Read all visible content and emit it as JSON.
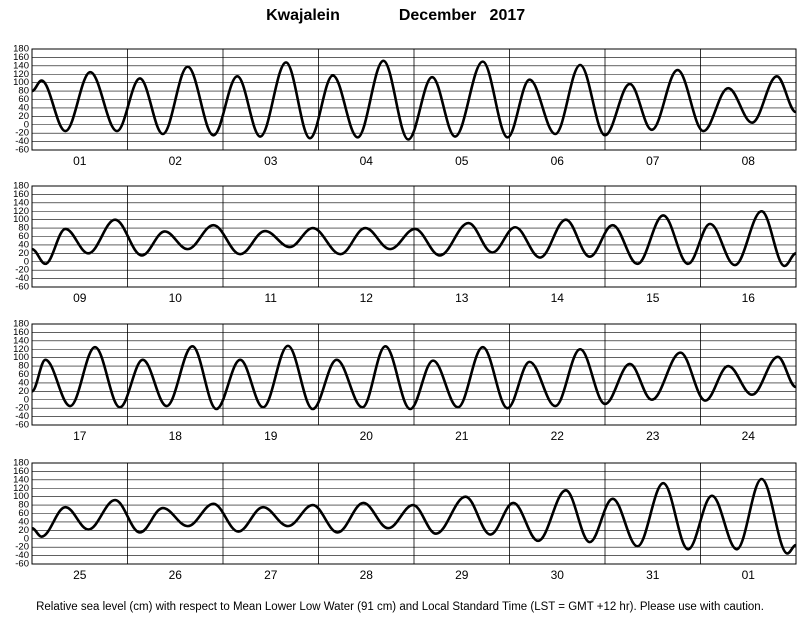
{
  "header": {
    "location": "Kwajalein",
    "date": "December   2017"
  },
  "footnote": "Relative sea level (cm) with respect to Mean Lower Low Water (91 cm) and Local Standard Time (LST = GMT +12 hr). Please use with caution.",
  "chart_data": [
    {
      "type": "line",
      "categories": [
        "01",
        "02",
        "03",
        "04",
        "05",
        "06",
        "07",
        "08"
      ],
      "xlim": [
        0,
        8
      ],
      "ylim": [
        -60,
        180
      ],
      "yticks": [
        -60,
        -40,
        -20,
        0,
        20,
        40,
        60,
        80,
        100,
        120,
        140,
        160,
        180
      ],
      "grid": true,
      "x": [
        0,
        0.1,
        0.35,
        0.61,
        0.89,
        1.13,
        1.37,
        1.63,
        1.9,
        2.15,
        2.39,
        2.66,
        2.91,
        3.15,
        3.41,
        3.68,
        3.94,
        4.19,
        4.43,
        4.72,
        4.98,
        5.21,
        5.48,
        5.74,
        6.0,
        6.26,
        6.49,
        6.76,
        7.03,
        7.29,
        7.54,
        7.8,
        8.0
      ],
      "series": [
        {
          "color": "#000000",
          "values": [
            80,
            105,
            -15,
            125,
            -15,
            110,
            -22,
            138,
            -25,
            115,
            -28,
            148,
            -32,
            117,
            -30,
            152,
            -35,
            113,
            -28,
            150,
            -30,
            107,
            -22,
            142,
            -25,
            97,
            -12,
            130,
            -15,
            87,
            5,
            115,
            30
          ]
        }
      ]
    },
    {
      "type": "line",
      "categories": [
        "09",
        "10",
        "11",
        "12",
        "13",
        "14",
        "15",
        "16"
      ],
      "xlim": [
        0,
        8
      ],
      "ylim": [
        -60,
        180
      ],
      "yticks": [
        -60,
        -40,
        -20,
        0,
        20,
        40,
        60,
        80,
        100,
        120,
        140,
        160,
        180
      ],
      "grid": true,
      "x": [
        0,
        0.14,
        0.35,
        0.59,
        0.87,
        1.15,
        1.39,
        1.63,
        1.9,
        2.18,
        2.44,
        2.7,
        2.94,
        3.23,
        3.49,
        3.75,
        4.01,
        4.27,
        4.57,
        4.82,
        5.06,
        5.32,
        5.59,
        5.84,
        6.08,
        6.34,
        6.61,
        6.87,
        7.1,
        7.36,
        7.64,
        7.88,
        8.0
      ],
      "series": [
        {
          "color": "#000000",
          "values": [
            30,
            -5,
            78,
            20,
            100,
            15,
            72,
            30,
            87,
            18,
            73,
            35,
            80,
            18,
            80,
            30,
            78,
            15,
            92,
            22,
            82,
            10,
            100,
            12,
            87,
            -5,
            110,
            -5,
            90,
            -8,
            120,
            -10,
            20
          ]
        }
      ]
    },
    {
      "type": "line",
      "categories": [
        "17",
        "18",
        "19",
        "20",
        "21",
        "22",
        "23",
        "24"
      ],
      "xlim": [
        0,
        8
      ],
      "ylim": [
        -60,
        180
      ],
      "yticks": [
        -60,
        -40,
        -20,
        0,
        20,
        40,
        60,
        80,
        100,
        120,
        140,
        160,
        180
      ],
      "grid": true,
      "x": [
        0,
        0.14,
        0.4,
        0.66,
        0.92,
        1.16,
        1.41,
        1.68,
        1.93,
        2.18,
        2.42,
        2.68,
        2.94,
        3.19,
        3.46,
        3.7,
        3.96,
        4.2,
        4.46,
        4.72,
        4.98,
        5.21,
        5.48,
        5.74,
        6.0,
        6.26,
        6.49,
        6.79,
        7.05,
        7.29,
        7.54,
        7.81,
        8.0
      ],
      "series": [
        {
          "color": "#000000",
          "values": [
            20,
            95,
            -15,
            125,
            -18,
            95,
            -15,
            127,
            -22,
            95,
            -18,
            128,
            -22,
            95,
            -18,
            127,
            -22,
            93,
            -18,
            125,
            -20,
            90,
            -15,
            120,
            -10,
            85,
            0,
            112,
            -2,
            80,
            12,
            102,
            30
          ]
        }
      ]
    },
    {
      "type": "line",
      "categories": [
        "25",
        "26",
        "27",
        "28",
        "29",
        "30",
        "31",
        "01"
      ],
      "xlim": [
        0,
        8
      ],
      "ylim": [
        -60,
        180
      ],
      "yticks": [
        -60,
        -40,
        -20,
        0,
        20,
        40,
        60,
        80,
        100,
        120,
        140,
        160,
        180
      ],
      "grid": true,
      "x": [
        0,
        0.1,
        0.35,
        0.59,
        0.87,
        1.13,
        1.37,
        1.63,
        1.9,
        2.16,
        2.42,
        2.68,
        2.94,
        3.2,
        3.47,
        3.73,
        3.99,
        4.23,
        4.54,
        4.8,
        5.04,
        5.3,
        5.59,
        5.84,
        6.08,
        6.34,
        6.61,
        6.87,
        7.12,
        7.38,
        7.64,
        7.91,
        8.0
      ],
      "series": [
        {
          "color": "#000000",
          "values": [
            25,
            5,
            75,
            22,
            92,
            15,
            73,
            30,
            83,
            17,
            75,
            30,
            80,
            15,
            85,
            25,
            80,
            12,
            100,
            10,
            85,
            -5,
            115,
            -8,
            95,
            -18,
            132,
            -25,
            102,
            -25,
            142,
            -35,
            -15
          ]
        }
      ]
    }
  ]
}
